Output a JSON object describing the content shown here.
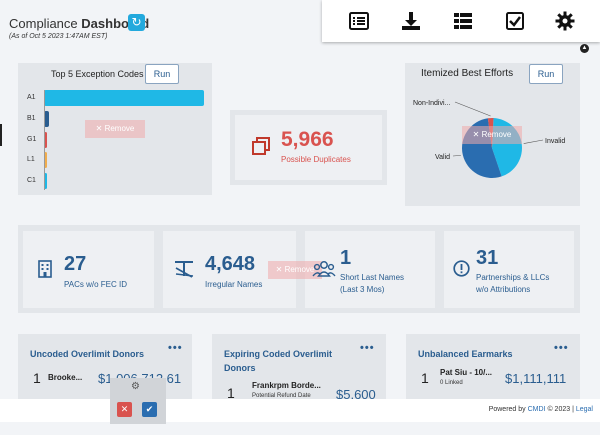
{
  "header": {
    "title_prefix": "Compliance",
    "title_bold": "Dashboard",
    "refresh_icon": "↻",
    "asof": "(As of Oct 5 2023 1:47AM EST)"
  },
  "toolbar": {
    "icons": [
      "list-view-icon",
      "download-icon",
      "grid-list-icon",
      "checkbox-icon",
      "settings-gear-icon"
    ]
  },
  "exception_codes": {
    "title": "Top 5 Exception Codes",
    "run_label": "Run",
    "remove_label": "✕ Remove",
    "bars": [
      {
        "label": "A1",
        "value": 100,
        "color": "#1fb8e6"
      },
      {
        "label": "B1",
        "value": 3,
        "color": "#2a5d8f"
      },
      {
        "label": "G1",
        "value": 2,
        "color": "#d9534f"
      },
      {
        "label": "L1",
        "value": 2,
        "color": "#f0ad4e"
      },
      {
        "label": "C1",
        "value": 1.5,
        "color": "#1fb8e6"
      }
    ]
  },
  "duplicates": {
    "count": "5,966",
    "label": "Possible Duplicates"
  },
  "itemized": {
    "title": "Itemized Best Efforts",
    "run_label": "Run",
    "remove_label": "✕ Remove",
    "chart_data": {
      "type": "pie",
      "title": "Itemized Best Efforts",
      "categories": [
        "Invalid",
        "Valid",
        "Non-Indivi..."
      ],
      "values": [
        44,
        53,
        3
      ],
      "colors": [
        "#1fb8e6",
        "#2a6db0",
        "#d9534f"
      ]
    }
  },
  "stats": [
    {
      "value": "27",
      "label_line1": "PACs w/o FEC ID",
      "label_line2": "",
      "icon": "building-icon"
    },
    {
      "value": "4,648",
      "label_line1": "Irregular Names",
      "label_line2": "",
      "icon": "irregular-name-icon"
    },
    {
      "value": "1",
      "label_line1": "Short Last Names",
      "label_line2": "(Last 3 Mos)",
      "icon": "users-icon"
    },
    {
      "value": "31",
      "label_line1": "Partnerships & LLCs",
      "label_line2": "w/o Attributions",
      "icon": "exclamation-circle-icon"
    }
  ],
  "stats_remove_label": "✕ Remove",
  "bottom_cards": [
    {
      "title_line1": "Uncoded Overlimit Donors",
      "title_line2": "",
      "rank": "1",
      "name": "Brooke...",
      "note": "",
      "amount": "$1,006,712.61"
    },
    {
      "title_line1": "Expiring Coded Overlimit",
      "title_line2": "Donors",
      "rank": "1",
      "name": "Frankrpm Borde...",
      "note": "Potential Refund Date",
      "amount": "$5,600"
    },
    {
      "title_line1": "Unbalanced Earmarks",
      "title_line2": "",
      "rank": "1",
      "name": "Pat Siu - 10/...",
      "note": "0 Linked",
      "amount": "$1,111,111"
    }
  ],
  "card_menu": "•••",
  "footer": {
    "powered_by": "Powered by",
    "brand": "CMDI",
    "copyright": "© 2023 |",
    "legal": "Legal"
  },
  "popup": {
    "gear": "⚙",
    "cancel": "✕",
    "confirm": "✔"
  }
}
